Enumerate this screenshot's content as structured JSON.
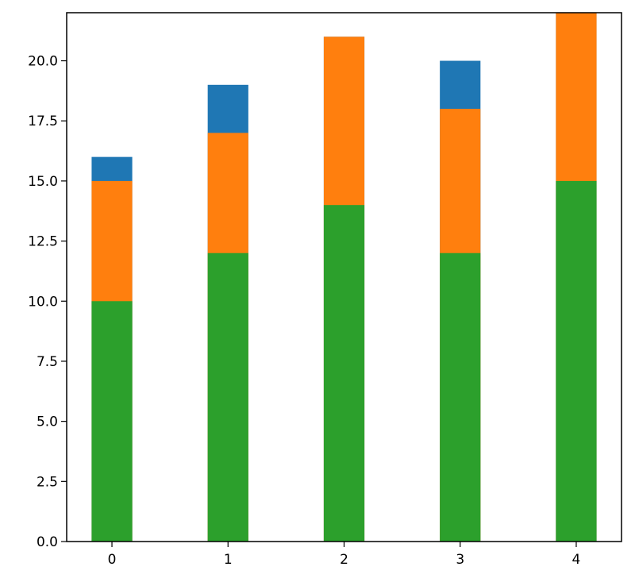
{
  "chart_data": {
    "type": "bar",
    "title": "",
    "xlabel": "",
    "ylabel": "",
    "categories": [
      "0",
      "1",
      "2",
      "3",
      "4"
    ],
    "x": [
      0,
      1,
      2,
      3,
      4
    ],
    "ylim": [
      0,
      22
    ],
    "yticks": [
      0.0,
      2.5,
      5.0,
      7.5,
      10.0,
      12.5,
      15.0,
      17.5,
      20.0
    ],
    "ytick_labels": [
      "0.0",
      "2.5",
      "5.0",
      "7.5",
      "10.0",
      "12.5",
      "15.0",
      "17.5",
      "20.0"
    ],
    "xtick_labels": [
      "0",
      "1",
      "2",
      "3",
      "4"
    ],
    "grid": false,
    "legend": null,
    "bar_width": 0.35,
    "layout": "overlaid bars (drawn back to front: blue, orange, green)",
    "series": [
      {
        "name": "blue",
        "color": "#1f77b4",
        "values": [
          16,
          19,
          21,
          20,
          22
        ]
      },
      {
        "name": "orange",
        "color": "#ff7f0e",
        "values": [
          15,
          17,
          21,
          18,
          22
        ]
      },
      {
        "name": "green",
        "color": "#2ca02c",
        "values": [
          10,
          12,
          14,
          12,
          15
        ]
      }
    ],
    "notes": "Blue visible only on bars 0,1,3; bar 4 orange extends beyond top of axes (clipped at 22)."
  }
}
